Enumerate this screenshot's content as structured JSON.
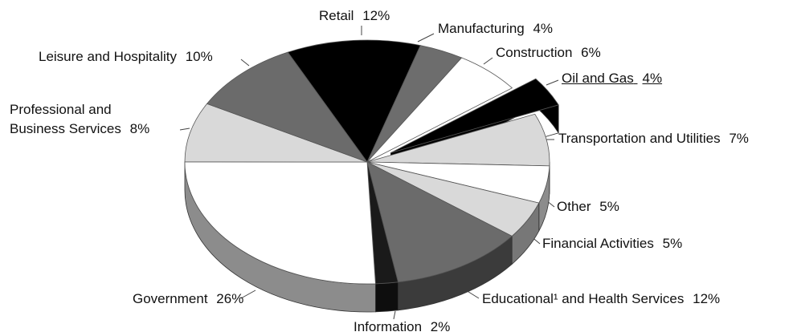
{
  "chart_data": {
    "type": "pie3d",
    "categories": [
      "Retail",
      "Manufacturing",
      "Construction",
      "Oil and Gas",
      "Transportation and Utilities",
      "Other",
      "Financial Activities",
      "Educational¹ and Health Services",
      "Information",
      "Government",
      "Professional and Business Services",
      "Leisure and Hospitality"
    ],
    "values": [
      12,
      4,
      6,
      4,
      7,
      5,
      5,
      12,
      2,
      26,
      8,
      10
    ],
    "value_labels": [
      "12%",
      "4%",
      "6%",
      "4%",
      "7%",
      "5%",
      "5%",
      "12%",
      "2%",
      "26%",
      "8%",
      "10%"
    ],
    "colors": [
      "#000000",
      "#6d6d6d",
      "#ffffff",
      "#000000",
      "#d9d9d9",
      "#ffffff",
      "#d9d9d9",
      "#6b6b6b",
      "#1a1a1a",
      "#ffffff",
      "#d9d9d9",
      "#6b6b6b"
    ],
    "exploded": [
      3
    ]
  }
}
